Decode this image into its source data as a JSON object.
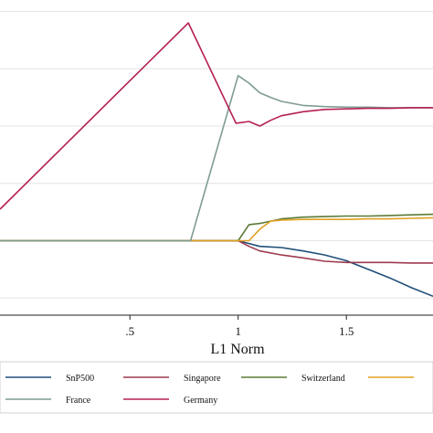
{
  "chart_data": {
    "type": "line",
    "title": "",
    "xlabel": "L1 Norm",
    "ylabel": "",
    "xlim": [
      -0.1,
      1.9
    ],
    "ylim": [
      -0.13,
      0.42
    ],
    "xticks": [
      {
        "value": 0.5,
        "label": ".5"
      },
      {
        "value": 1.0,
        "label": "1"
      },
      {
        "value": 1.5,
        "label": "1.5"
      }
    ],
    "ygrid": [
      -0.1,
      0.0,
      0.1,
      0.2,
      0.3,
      0.4
    ],
    "grid": true,
    "legend_position": "bottom",
    "series": [
      {
        "name": "SnP500",
        "color": "#1f4e79",
        "x": [
          -0.1,
          1.0,
          1.05,
          1.1,
          1.2,
          1.3,
          1.4,
          1.5,
          1.6,
          1.7,
          1.8,
          1.9
        ],
        "y": [
          0.0,
          0.0,
          -0.005,
          -0.01,
          -0.012,
          -0.018,
          -0.025,
          -0.035,
          -0.05,
          -0.065,
          -0.082,
          -0.097
        ]
      },
      {
        "name": "Singapore",
        "color": "#9e3a4e",
        "x": [
          -0.1,
          1.0,
          1.05,
          1.1,
          1.2,
          1.3,
          1.4,
          1.5,
          1.6,
          1.7,
          1.8,
          1.9
        ],
        "y": [
          0.0,
          0.0,
          -0.01,
          -0.018,
          -0.025,
          -0.03,
          -0.036,
          -0.038,
          -0.038,
          -0.038,
          -0.039,
          -0.039
        ]
      },
      {
        "name": "Switzerland",
        "color": "#5b7a35",
        "x": [
          -0.1,
          1.0,
          1.05,
          1.1,
          1.2,
          1.3,
          1.4,
          1.5,
          1.6,
          1.7,
          1.8,
          1.9
        ],
        "y": [
          0.0,
          0.0,
          0.028,
          0.03,
          0.038,
          0.041,
          0.042,
          0.043,
          0.043,
          0.044,
          0.045,
          0.046
        ]
      },
      {
        "name": "",
        "color": "#e0a020",
        "x": [
          -0.1,
          1.05,
          1.1,
          1.15,
          1.2,
          1.3,
          1.4,
          1.5,
          1.6,
          1.7,
          1.8,
          1.9
        ],
        "y": [
          0.0,
          0.0,
          0.02,
          0.034,
          0.036,
          0.037,
          0.037,
          0.037,
          0.038,
          0.038,
          0.039,
          0.04
        ]
      },
      {
        "name": "France",
        "color": "#7f9c91",
        "x": [
          -0.1,
          0.75,
          0.78,
          1.0,
          1.05,
          1.1,
          1.15,
          1.2,
          1.3,
          1.4,
          1.5,
          1.6,
          1.7,
          1.8,
          1.9
        ],
        "y": [
          0.0,
          0.0,
          0.0,
          0.288,
          0.275,
          0.258,
          0.25,
          0.243,
          0.236,
          0.234,
          0.233,
          0.233,
          0.232,
          0.232,
          0.232
        ]
      },
      {
        "name": "Germany",
        "color": "#b5204f",
        "x": [
          -0.1,
          0.77,
          0.99,
          1.05,
          1.1,
          1.15,
          1.2,
          1.3,
          1.4,
          1.5,
          1.6,
          1.7,
          1.8,
          1.9
        ],
        "y": [
          0.055,
          0.38,
          0.205,
          0.208,
          0.2,
          0.21,
          0.218,
          0.225,
          0.229,
          0.23,
          0.231,
          0.231,
          0.232,
          0.232
        ]
      }
    ]
  }
}
